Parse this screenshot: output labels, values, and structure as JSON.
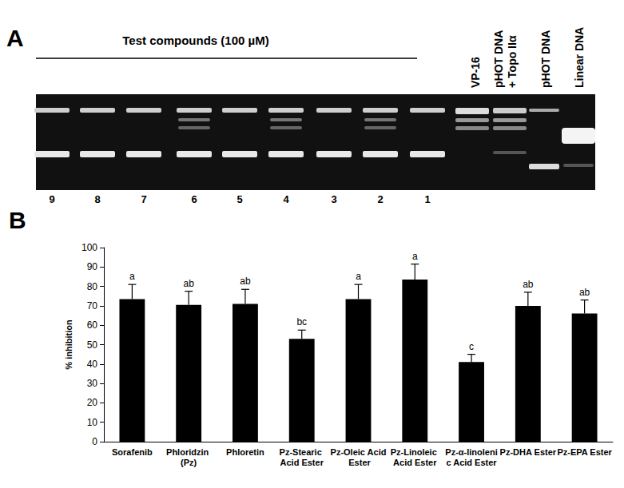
{
  "gel": {
    "panel_label": "A",
    "header": "Test compounds (100 µM)",
    "lane_numbers": [
      9,
      8,
      7,
      6,
      5,
      4,
      3,
      2,
      1
    ],
    "control_lanes": [
      [
        "VP-16"
      ],
      [
        "pHOT DNA",
        "+ Topo IIα"
      ],
      [
        "pHOT DNA"
      ],
      [
        "Linear DNA"
      ]
    ]
  },
  "chart_data": {
    "type": "bar",
    "title": "B",
    "categories": [
      "Sorafenib",
      "Phloridzin (Pz)",
      "Phloretin",
      "Pz-Stearic Acid Ester",
      "Pz-Oleic Acid Ester",
      "Pz-Linoleic Acid Ester",
      "Pz-α-linolenic Acid Ester",
      "Pz-DHA Ester",
      "Pz-EPA Ester"
    ],
    "values": [
      73.5,
      70.5,
      71,
      53,
      73.5,
      83.5,
      41,
      70,
      66
    ],
    "errors": [
      7.5,
      7,
      7.5,
      4.5,
      7.5,
      8,
      4,
      7,
      7
    ],
    "letters": [
      "a",
      "ab",
      "ab",
      "bc",
      "a",
      "a",
      "c",
      "ab",
      "ab"
    ],
    "color": "#000000",
    "y_label": "% inhibition",
    "ylim": [
      0,
      100
    ],
    "yticks": [
      0,
      10,
      20,
      30,
      40,
      50,
      60,
      70,
      80,
      90,
      100
    ],
    "grid": false
  }
}
